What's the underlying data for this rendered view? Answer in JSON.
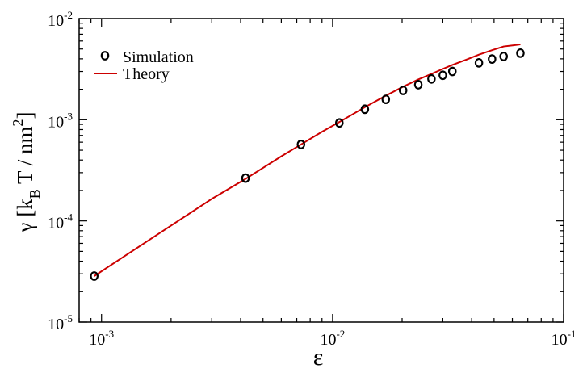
{
  "chart_data": {
    "type": "scatter",
    "x_scale": "log",
    "y_scale": "log",
    "xlim": [
      0.0008,
      0.1
    ],
    "ylim": [
      1e-05,
      0.01
    ],
    "xlabel": "ε",
    "ylabel": {
      "prefix": "γ [k",
      "sub": "B",
      "mid": " T / nm",
      "sup": "2",
      "suffix": "]"
    },
    "x_ticks": [
      {
        "value": 0.001,
        "base": "10",
        "exp": "-3"
      },
      {
        "value": 0.01,
        "base": "10",
        "exp": "-2"
      },
      {
        "value": 0.1,
        "base": "10",
        "exp": "-1"
      }
    ],
    "y_ticks": [
      {
        "value": 1e-05,
        "base": "10",
        "exp": "-5"
      },
      {
        "value": 0.0001,
        "base": "10",
        "exp": "-4"
      },
      {
        "value": 0.001,
        "base": "10",
        "exp": "-3"
      },
      {
        "value": 0.01,
        "base": "10",
        "exp": "-2"
      }
    ],
    "grid": false,
    "legend_position": "top-left",
    "series": [
      {
        "name": "Simulation",
        "kind": "markers",
        "marker": "open-circle",
        "color": "#000000",
        "x": [
          0.00093,
          0.0042,
          0.0073,
          0.0107,
          0.0138,
          0.017,
          0.0202,
          0.0235,
          0.0268,
          0.03,
          0.033,
          0.043,
          0.049,
          0.055,
          0.065
        ],
        "y": [
          2.85e-05,
          0.000265,
          0.00057,
          0.00093,
          0.00127,
          0.00159,
          0.00195,
          0.00222,
          0.00253,
          0.00275,
          0.003,
          0.00365,
          0.00398,
          0.00422,
          0.00455
        ]
      },
      {
        "name": "Theory",
        "kind": "line",
        "color": "#cc0000",
        "x": [
          0.00093,
          0.002,
          0.003,
          0.0042,
          0.006,
          0.0073,
          0.009,
          0.0107,
          0.0138,
          0.017,
          0.0202,
          0.0235,
          0.0268,
          0.03,
          0.033,
          0.038,
          0.043,
          0.049,
          0.055,
          0.065
        ],
        "y": [
          2.85e-05,
          9e-05,
          0.000165,
          0.00026,
          0.000435,
          0.00057,
          0.00076,
          0.00095,
          0.00133,
          0.00173,
          0.00212,
          0.0025,
          0.00284,
          0.00318,
          0.00348,
          0.00393,
          0.0044,
          0.00487,
          0.0053,
          0.00555
        ]
      }
    ]
  }
}
